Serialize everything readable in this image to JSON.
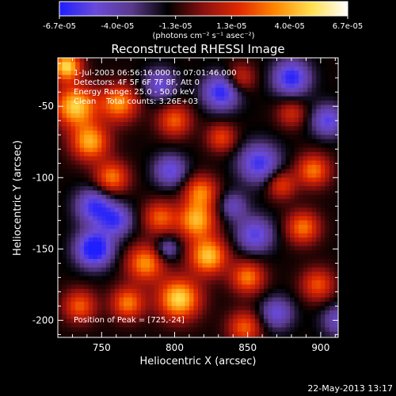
{
  "chart_data": {
    "type": "heatmap",
    "title": "Reconstructed RHESSI Image",
    "xlabel": "Heliocentric X (arcsec)",
    "ylabel": "Heliocentric Y (arcsec)",
    "xlim": [
      720,
      912
    ],
    "ylim": [
      -212,
      -16
    ],
    "x_ticks": [
      750,
      800,
      850,
      900
    ],
    "y_ticks": [
      -50,
      -100,
      -150,
      -200
    ],
    "colorbar": {
      "ticks": [
        "-6.7e-05",
        "-4.0e-05",
        "-1.3e-05",
        "1.3e-05",
        "4.0e-05",
        "6.7e-05"
      ],
      "min": -6.7e-05,
      "max": 6.7e-05,
      "unit_label": "(photons cm⁻² s⁻¹ asec⁻²)",
      "colors": [
        "#1e1eff",
        "#6a4ad8",
        "#5a3a8c",
        "#000000",
        "#8a1010",
        "#e02a00",
        "#ff8800",
        "#ffe050",
        "#ffffff"
      ]
    },
    "annotations": [
      "1-Jul-2003 06:56:16.000 to 07:01:46.000",
      "Detectors: 4F 5F 6F 7F 8F, Att 0",
      "Energy Range: 25.0 - 50.0 keV",
      "Clean    Total counts: 3.26E+03"
    ],
    "peak_label": "Position of Peak = [725,-24]",
    "peak": [
      725,
      -24
    ],
    "sources": [
      {
        "x": 726,
        "y": -22,
        "v": 6.5e-05,
        "s": 7
      },
      {
        "x": 732,
        "y": -50,
        "v": 6.3e-05,
        "s": 10
      },
      {
        "x": 742,
        "y": -75,
        "v": 5.5e-05,
        "s": 9
      },
      {
        "x": 762,
        "y": -48,
        "v": 5e-05,
        "s": 9
      },
      {
        "x": 757,
        "y": -100,
        "v": 4.6e-05,
        "s": 8
      },
      {
        "x": 800,
        "y": -60,
        "v": 4e-05,
        "s": 8
      },
      {
        "x": 832,
        "y": -72,
        "v": 3.5e-05,
        "s": 7
      },
      {
        "x": 818,
        "y": -110,
        "v": 4.5e-05,
        "s": 8
      },
      {
        "x": 815,
        "y": -130,
        "v": 5.6e-05,
        "s": 9
      },
      {
        "x": 790,
        "y": -128,
        "v": 4e-05,
        "s": 8
      },
      {
        "x": 823,
        "y": -155,
        "v": 6e-05,
        "s": 9
      },
      {
        "x": 780,
        "y": -160,
        "v": 5e-05,
        "s": 9
      },
      {
        "x": 803,
        "y": -185,
        "v": 6.5e-05,
        "s": 10
      },
      {
        "x": 768,
        "y": -188,
        "v": 4.6e-05,
        "s": 8
      },
      {
        "x": 735,
        "y": -190,
        "v": 4e-05,
        "s": 8
      },
      {
        "x": 850,
        "y": -170,
        "v": 4.6e-05,
        "s": 8
      },
      {
        "x": 848,
        "y": -205,
        "v": 4e-05,
        "s": 8
      },
      {
        "x": 895,
        "y": -95,
        "v": 4.5e-05,
        "s": 8
      },
      {
        "x": 888,
        "y": -135,
        "v": 4.5e-05,
        "s": 8
      },
      {
        "x": 898,
        "y": -175,
        "v": 3.8e-05,
        "s": 8
      },
      {
        "x": 873,
        "y": -105,
        "v": 3.5e-05,
        "s": 7
      },
      {
        "x": 845,
        "y": -30,
        "v": 3e-05,
        "s": 7
      },
      {
        "x": 880,
        "y": -55,
        "v": 2.8e-05,
        "s": 7
      },
      {
        "x": 745,
        "y": -150,
        "v": -6e-05,
        "s": 9
      },
      {
        "x": 745,
        "y": -120,
        "v": -4.5e-05,
        "s": 9
      },
      {
        "x": 760,
        "y": -130,
        "v": -4e-05,
        "s": 8
      },
      {
        "x": 832,
        "y": -40,
        "v": -5e-05,
        "s": 9
      },
      {
        "x": 858,
        "y": -90,
        "v": -4.5e-05,
        "s": 10
      },
      {
        "x": 880,
        "y": -30,
        "v": -5e-05,
        "s": 9
      },
      {
        "x": 905,
        "y": -60,
        "v": -4e-05,
        "s": 8
      },
      {
        "x": 797,
        "y": -95,
        "v": -3.8e-05,
        "s": 8
      },
      {
        "x": 790,
        "y": -35,
        "v": -3.5e-05,
        "s": 8
      },
      {
        "x": 855,
        "y": -140,
        "v": -4e-05,
        "s": 9
      },
      {
        "x": 870,
        "y": -195,
        "v": -3.5e-05,
        "s": 8
      },
      {
        "x": 912,
        "y": -200,
        "v": -3e-05,
        "s": 8
      },
      {
        "x": 795,
        "y": -150,
        "v": -3e-05,
        "s": 6
      },
      {
        "x": 840,
        "y": -120,
        "v": -2.8e-05,
        "s": 7
      }
    ],
    "grid": false,
    "legend": "none"
  },
  "footer": {
    "timestamp": "22-May-2013 13:17"
  }
}
